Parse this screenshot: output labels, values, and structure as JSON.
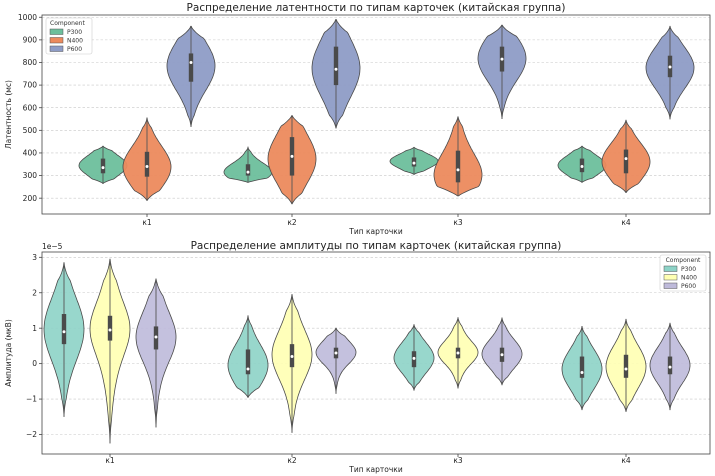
{
  "chart_data": [
    {
      "type": "violin",
      "title": "Распределение латентности по типам карточек (китайская группа)",
      "xlabel": "Тип карточки",
      "ylabel": "Латентность (мс)",
      "ylim": [
        130,
        1010
      ],
      "yticks": [
        200,
        300,
        400,
        500,
        600,
        700,
        800,
        900,
        1000
      ],
      "categories": [
        "к1",
        "к2",
        "к3",
        "к4"
      ],
      "grid": true,
      "legend": {
        "title": "Component",
        "position": "top-left"
      },
      "series": [
        {
          "name": "P300",
          "color": "#6dbf9c",
          "violins": [
            {
              "min": 265,
              "max": 430,
              "median": 335,
              "q1": 310,
              "q3": 375,
              "mode": 345
            },
            {
              "min": 270,
              "max": 425,
              "median": 315,
              "q1": 300,
              "q3": 350,
              "mode": 310
            },
            {
              "min": 305,
              "max": 425,
              "median": 355,
              "q1": 340,
              "q3": 380,
              "mode": 365
            },
            {
              "min": 270,
              "max": 430,
              "median": 340,
              "q1": 315,
              "q3": 375,
              "mode": 345
            }
          ]
        },
        {
          "name": "N400",
          "color": "#ec8a5d",
          "violins": [
            {
              "min": 190,
              "max": 555,
              "median": 340,
              "q1": 295,
              "q3": 405,
              "mode": 330
            },
            {
              "min": 175,
              "max": 565,
              "median": 385,
              "q1": 300,
              "q3": 470,
              "mode": 370
            },
            {
              "min": 210,
              "max": 560,
              "median": 325,
              "q1": 270,
              "q3": 410,
              "mode": 290
            },
            {
              "min": 225,
              "max": 545,
              "median": 375,
              "q1": 310,
              "q3": 415,
              "mode": 360
            }
          ]
        },
        {
          "name": "P600",
          "color": "#8e9cc6",
          "violins": [
            {
              "min": 515,
              "max": 960,
              "median": 800,
              "q1": 715,
              "q3": 840,
              "mode": 790
            },
            {
              "min": 510,
              "max": 990,
              "median": 770,
              "q1": 700,
              "q3": 870,
              "mode": 770
            },
            {
              "min": 550,
              "max": 965,
              "median": 815,
              "q1": 760,
              "q3": 870,
              "mode": 820
            },
            {
              "min": 550,
              "max": 960,
              "median": 780,
              "q1": 735,
              "q3": 830,
              "mode": 770
            }
          ]
        }
      ]
    },
    {
      "type": "violin",
      "title": "Распределение амплитуды по типам карточек (китайская группа)",
      "xlabel": "Тип карточки",
      "ylabel": "Амплитуда (мкВ)",
      "offset_text": "1e−5",
      "ylim": [
        -2.55,
        3.15
      ],
      "yticks": [
        -2,
        -1,
        0,
        1,
        2,
        3
      ],
      "categories": [
        "к1",
        "к2",
        "к3",
        "к4"
      ],
      "grid": true,
      "legend": {
        "title": "Component",
        "position": "top-right"
      },
      "series": [
        {
          "name": "P300",
          "color": "#8dd3c7",
          "violins": [
            {
              "min": -1.5,
              "max": 2.85,
              "median": 0.9,
              "q1": 0.55,
              "q3": 1.4,
              "mode": 0.95
            },
            {
              "min": -0.95,
              "max": 1.35,
              "median": -0.15,
              "q1": -0.3,
              "q3": 0.4,
              "mode": -0.1
            },
            {
              "min": -0.75,
              "max": 1.1,
              "median": 0.15,
              "q1": -0.1,
              "q3": 0.35,
              "mode": 0.2
            },
            {
              "min": -1.3,
              "max": 1.05,
              "median": -0.25,
              "q1": -0.4,
              "q3": 0.2,
              "mode": -0.2
            }
          ]
        },
        {
          "name": "N400",
          "color": "#ffffb3",
          "violins": [
            {
              "min": -2.25,
              "max": 2.95,
              "median": 0.95,
              "q1": 0.65,
              "q3": 1.35,
              "mode": 0.9
            },
            {
              "min": -1.95,
              "max": 1.95,
              "median": 0.2,
              "q1": -0.1,
              "q3": 0.55,
              "mode": 0.3
            },
            {
              "min": -0.7,
              "max": 1.3,
              "median": 0.3,
              "q1": 0.15,
              "q3": 0.45,
              "mode": 0.35
            },
            {
              "min": -1.35,
              "max": 1.25,
              "median": -0.15,
              "q1": -0.4,
              "q3": 0.25,
              "mode": -0.1
            }
          ]
        },
        {
          "name": "P600",
          "color": "#bebada",
          "violins": [
            {
              "min": -1.8,
              "max": 2.4,
              "median": 0.75,
              "q1": 0.4,
              "q3": 1.05,
              "mode": 0.8
            },
            {
              "min": -0.85,
              "max": 1.0,
              "median": 0.3,
              "q1": 0.15,
              "q3": 0.45,
              "mode": 0.35
            },
            {
              "min": -0.6,
              "max": 1.3,
              "median": 0.25,
              "q1": 0.05,
              "q3": 0.45,
              "mode": 0.3
            },
            {
              "min": -1.3,
              "max": 1.15,
              "median": -0.1,
              "q1": -0.3,
              "q3": 0.2,
              "mode": -0.05
            }
          ]
        }
      ]
    }
  ]
}
